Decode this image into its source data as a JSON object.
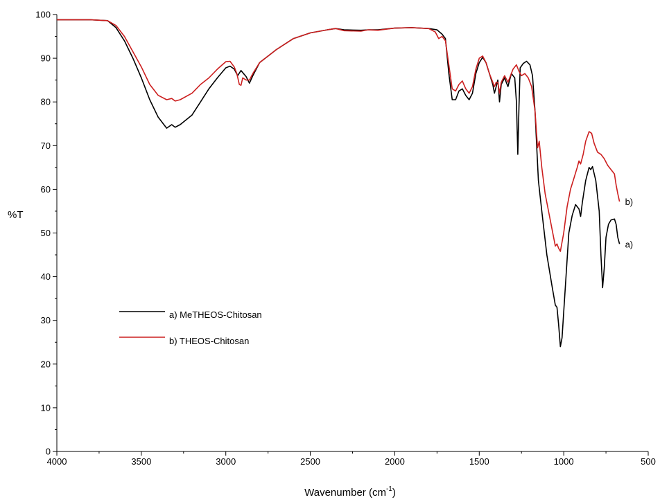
{
  "chart_data": {
    "type": "line",
    "title": "",
    "xlabel": "Wavenumber (cm",
    "xlabel_sup": "-1",
    "xlabel_end": ")",
    "ylabel": "%T",
    "xlim": [
      4000,
      500
    ],
    "ylim": [
      0,
      100
    ],
    "x_ticks": [
      4000,
      3500,
      3000,
      2500,
      2000,
      1500,
      1000,
      500
    ],
    "y_ticks": [
      0,
      10,
      20,
      30,
      40,
      50,
      60,
      70,
      80,
      90,
      100
    ],
    "grid": false,
    "legend_position": "bottom-left",
    "series": [
      {
        "name": "a) MeTHEOS-Chitosan",
        "end_label": "a)",
        "color": "#000000",
        "points": [
          [
            4000,
            98.8
          ],
          [
            3800,
            98.8
          ],
          [
            3700,
            98.6
          ],
          [
            3650,
            97.0
          ],
          [
            3600,
            94.0
          ],
          [
            3550,
            90.0
          ],
          [
            3500,
            85.5
          ],
          [
            3450,
            80.5
          ],
          [
            3400,
            76.5
          ],
          [
            3350,
            74.0
          ],
          [
            3320,
            74.8
          ],
          [
            3300,
            74.2
          ],
          [
            3270,
            74.8
          ],
          [
            3200,
            77.0
          ],
          [
            3150,
            80.0
          ],
          [
            3100,
            83.0
          ],
          [
            3050,
            85.5
          ],
          [
            3000,
            87.8
          ],
          [
            2975,
            88.2
          ],
          [
            2950,
            87.5
          ],
          [
            2930,
            86.0
          ],
          [
            2910,
            87.2
          ],
          [
            2880,
            85.8
          ],
          [
            2860,
            84.3
          ],
          [
            2840,
            86.0
          ],
          [
            2800,
            89.0
          ],
          [
            2700,
            92.0
          ],
          [
            2600,
            94.5
          ],
          [
            2500,
            95.8
          ],
          [
            2400,
            96.5
          ],
          [
            2350,
            96.8
          ],
          [
            2300,
            96.5
          ],
          [
            2200,
            96.4
          ],
          [
            2150,
            96.5
          ],
          [
            2100,
            96.5
          ],
          [
            2000,
            96.9
          ],
          [
            1900,
            97.0
          ],
          [
            1800,
            96.8
          ],
          [
            1750,
            96.5
          ],
          [
            1720,
            95.5
          ],
          [
            1700,
            94.5
          ],
          [
            1680,
            86.5
          ],
          [
            1660,
            80.5
          ],
          [
            1640,
            80.5
          ],
          [
            1620,
            82.5
          ],
          [
            1600,
            83.0
          ],
          [
            1580,
            81.5
          ],
          [
            1560,
            80.5
          ],
          [
            1540,
            82.0
          ],
          [
            1520,
            86.5
          ],
          [
            1500,
            89.0
          ],
          [
            1480,
            90.2
          ],
          [
            1460,
            89.0
          ],
          [
            1440,
            86.5
          ],
          [
            1420,
            84.0
          ],
          [
            1410,
            82.0
          ],
          [
            1400,
            83.5
          ],
          [
            1390,
            85.0
          ],
          [
            1380,
            80.0
          ],
          [
            1370,
            84.0
          ],
          [
            1350,
            85.5
          ],
          [
            1330,
            83.5
          ],
          [
            1310,
            86.5
          ],
          [
            1290,
            85.5
          ],
          [
            1280,
            80.0
          ],
          [
            1272,
            68.0
          ],
          [
            1265,
            79.0
          ],
          [
            1258,
            87.8
          ],
          [
            1240,
            88.8
          ],
          [
            1220,
            89.3
          ],
          [
            1200,
            88.5
          ],
          [
            1185,
            86.0
          ],
          [
            1170,
            78.0
          ],
          [
            1160,
            70.0
          ],
          [
            1150,
            62.0
          ],
          [
            1130,
            55.0
          ],
          [
            1100,
            45.0
          ],
          [
            1070,
            38.0
          ],
          [
            1050,
            33.5
          ],
          [
            1040,
            33.0
          ],
          [
            1030,
            29.0
          ],
          [
            1020,
            24.0
          ],
          [
            1010,
            26.0
          ],
          [
            990,
            38.0
          ],
          [
            970,
            50.0
          ],
          [
            950,
            54.0
          ],
          [
            930,
            56.5
          ],
          [
            910,
            55.5
          ],
          [
            900,
            53.8
          ],
          [
            890,
            57.0
          ],
          [
            870,
            62.0
          ],
          [
            850,
            65.0
          ],
          [
            840,
            64.5
          ],
          [
            830,
            65.2
          ],
          [
            810,
            62.0
          ],
          [
            790,
            55.0
          ],
          [
            780,
            45.0
          ],
          [
            770,
            37.5
          ],
          [
            760,
            42.0
          ],
          [
            750,
            49.0
          ],
          [
            735,
            52.0
          ],
          [
            720,
            53.0
          ],
          [
            700,
            53.2
          ],
          [
            690,
            52.0
          ],
          [
            680,
            49.0
          ],
          [
            670,
            47.5
          ]
        ]
      },
      {
        "name": "b) THEOS-Chitosan",
        "end_label": "b)",
        "color": "#cc1f1f",
        "points": [
          [
            4000,
            98.8
          ],
          [
            3800,
            98.8
          ],
          [
            3700,
            98.6
          ],
          [
            3650,
            97.5
          ],
          [
            3600,
            95.0
          ],
          [
            3550,
            91.5
          ],
          [
            3500,
            88.0
          ],
          [
            3450,
            84.0
          ],
          [
            3400,
            81.5
          ],
          [
            3350,
            80.5
          ],
          [
            3320,
            80.8
          ],
          [
            3300,
            80.2
          ],
          [
            3270,
            80.5
          ],
          [
            3200,
            82.0
          ],
          [
            3150,
            84.0
          ],
          [
            3100,
            85.5
          ],
          [
            3050,
            87.5
          ],
          [
            3000,
            89.2
          ],
          [
            2975,
            89.3
          ],
          [
            2950,
            88.0
          ],
          [
            2935,
            86.5
          ],
          [
            2920,
            84.0
          ],
          [
            2910,
            83.8
          ],
          [
            2900,
            85.5
          ],
          [
            2880,
            85.0
          ],
          [
            2860,
            85.0
          ],
          [
            2840,
            86.5
          ],
          [
            2800,
            89.0
          ],
          [
            2700,
            92.0
          ],
          [
            2600,
            94.5
          ],
          [
            2500,
            95.8
          ],
          [
            2400,
            96.5
          ],
          [
            2350,
            96.8
          ],
          [
            2300,
            96.3
          ],
          [
            2200,
            96.2
          ],
          [
            2160,
            96.5
          ],
          [
            2100,
            96.4
          ],
          [
            2000,
            96.9
          ],
          [
            1900,
            97.0
          ],
          [
            1800,
            96.8
          ],
          [
            1760,
            96.0
          ],
          [
            1740,
            94.5
          ],
          [
            1720,
            95.0
          ],
          [
            1700,
            94.0
          ],
          [
            1680,
            88.5
          ],
          [
            1660,
            83.0
          ],
          [
            1640,
            82.5
          ],
          [
            1620,
            84.0
          ],
          [
            1600,
            84.8
          ],
          [
            1580,
            83.0
          ],
          [
            1560,
            82.0
          ],
          [
            1540,
            83.5
          ],
          [
            1520,
            87.5
          ],
          [
            1500,
            90.0
          ],
          [
            1480,
            90.5
          ],
          [
            1460,
            89.0
          ],
          [
            1440,
            86.5
          ],
          [
            1420,
            84.5
          ],
          [
            1410,
            83.5
          ],
          [
            1400,
            84.5
          ],
          [
            1390,
            84.5
          ],
          [
            1380,
            82.0
          ],
          [
            1370,
            84.5
          ],
          [
            1350,
            86.0
          ],
          [
            1330,
            84.5
          ],
          [
            1300,
            87.5
          ],
          [
            1280,
            88.5
          ],
          [
            1265,
            87.0
          ],
          [
            1250,
            86.0
          ],
          [
            1230,
            86.5
          ],
          [
            1210,
            85.5
          ],
          [
            1190,
            83.5
          ],
          [
            1170,
            78.0
          ],
          [
            1155,
            69.5
          ],
          [
            1145,
            71.0
          ],
          [
            1130,
            65.0
          ],
          [
            1110,
            59.0
          ],
          [
            1090,
            55.0
          ],
          [
            1070,
            51.0
          ],
          [
            1050,
            47.0
          ],
          [
            1040,
            47.5
          ],
          [
            1030,
            46.5
          ],
          [
            1020,
            45.8
          ],
          [
            1000,
            50.0
          ],
          [
            980,
            56.0
          ],
          [
            960,
            60.0
          ],
          [
            940,
            62.5
          ],
          [
            920,
            65.0
          ],
          [
            910,
            66.5
          ],
          [
            900,
            65.8
          ],
          [
            885,
            68.0
          ],
          [
            870,
            71.0
          ],
          [
            850,
            73.2
          ],
          [
            835,
            72.8
          ],
          [
            820,
            70.5
          ],
          [
            800,
            68.5
          ],
          [
            780,
            68.0
          ],
          [
            760,
            67.0
          ],
          [
            740,
            65.5
          ],
          [
            720,
            64.5
          ],
          [
            700,
            63.5
          ],
          [
            690,
            61.0
          ],
          [
            680,
            59.0
          ],
          [
            670,
            57.2
          ]
        ]
      }
    ]
  }
}
